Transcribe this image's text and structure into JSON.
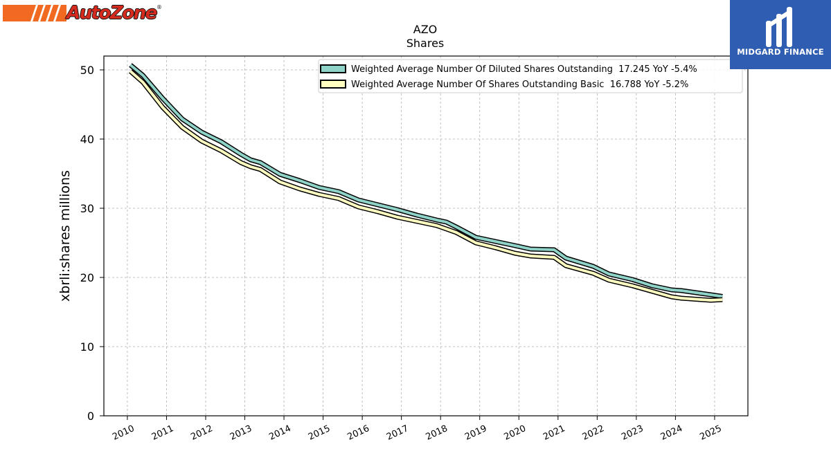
{
  "brand": {
    "logo_text": "AutoZone",
    "logo_mark": "®"
  },
  "watermark": {
    "text": "MIDGARD FINANCE"
  },
  "chart_data": {
    "type": "line",
    "title": "AZO",
    "subtitle": "Shares",
    "xlabel": "",
    "ylabel": "xbrli:shares millions",
    "xlim": [
      2009.4,
      2025.85
    ],
    "ylim": [
      0,
      52
    ],
    "x_ticks": [
      "2010",
      "2011",
      "2012",
      "2013",
      "2014",
      "2015",
      "2016",
      "2017",
      "2018",
      "2019",
      "2020",
      "2021",
      "2022",
      "2023",
      "2024",
      "2025"
    ],
    "y_ticks": [
      "0",
      "10",
      "20",
      "30",
      "40",
      "50"
    ],
    "grid": true,
    "legend_position": "top-right",
    "series": [
      {
        "name": "Weighted Average Number Of Diluted Shares Outstanding  17.245 YoY -5.4%",
        "color": "#8fd3c8",
        "x": [
          2010.08,
          2010.4,
          2010.9,
          2011.4,
          2011.9,
          2012.4,
          2012.9,
          2013.15,
          2013.4,
          2013.9,
          2014.4,
          2014.9,
          2015.4,
          2015.9,
          2016.4,
          2016.9,
          2017.4,
          2017.9,
          2018.15,
          2018.4,
          2018.9,
          2019.4,
          2019.9,
          2020.3,
          2020.9,
          2021.2,
          2021.9,
          2022.3,
          2022.9,
          2023.4,
          2023.9,
          2024.15,
          2024.4,
          2024.9,
          2025.2
        ],
        "values": [
          50.7,
          49.2,
          45.9,
          42.9,
          41.0,
          39.6,
          37.8,
          37.0,
          36.6,
          34.9,
          34.0,
          33.0,
          32.4,
          31.2,
          30.5,
          29.8,
          29.0,
          28.3,
          28.0,
          27.3,
          25.8,
          25.2,
          24.6,
          24.1,
          24.0,
          22.8,
          21.6,
          20.5,
          19.7,
          18.8,
          18.2,
          18.1,
          17.9,
          17.5,
          17.245
        ]
      },
      {
        "name": "Weighted Average Number Of Shares Outstanding Basic  16.788 YoY -5.2%",
        "color": "#fffdc0",
        "x": [
          2010.08,
          2010.4,
          2010.9,
          2011.4,
          2011.9,
          2012.4,
          2012.9,
          2013.15,
          2013.4,
          2013.9,
          2014.4,
          2014.9,
          2015.4,
          2015.9,
          2016.4,
          2016.9,
          2017.4,
          2017.9,
          2018.15,
          2018.4,
          2018.9,
          2019.4,
          2019.9,
          2020.3,
          2020.9,
          2021.2,
          2021.9,
          2022.3,
          2022.9,
          2023.4,
          2023.9,
          2024.15,
          2024.4,
          2024.9,
          2025.2
        ],
        "values": [
          49.8,
          48.2,
          44.6,
          41.7,
          39.7,
          38.3,
          36.6,
          36.0,
          35.6,
          33.8,
          32.8,
          32.0,
          31.4,
          30.2,
          29.5,
          28.7,
          28.1,
          27.5,
          27.0,
          26.5,
          25.0,
          24.3,
          23.5,
          23.1,
          22.9,
          21.7,
          20.6,
          19.6,
          18.8,
          18.0,
          17.2,
          17.0,
          16.9,
          16.7,
          16.788
        ]
      }
    ]
  }
}
